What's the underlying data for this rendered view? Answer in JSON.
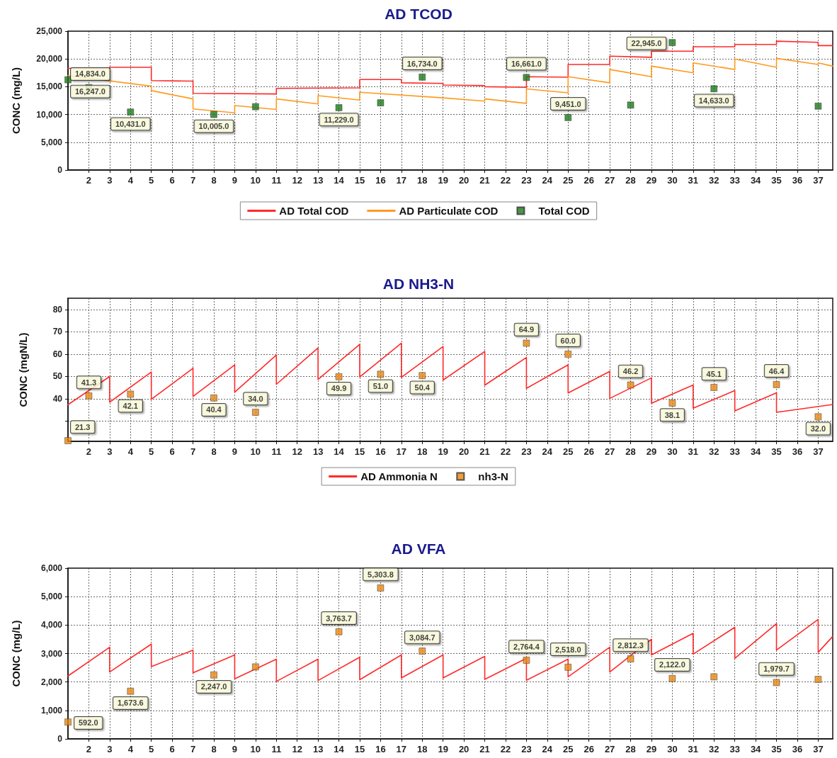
{
  "chart_data": [
    {
      "type": "line",
      "title": "AD TCOD",
      "ylabel": "CONC (mg/L)",
      "xlim": [
        1,
        37.7
      ],
      "xticks": [
        2,
        3,
        4,
        5,
        6,
        7,
        8,
        9,
        10,
        11,
        12,
        13,
        14,
        15,
        16,
        17,
        18,
        19,
        20,
        21,
        22,
        23,
        24,
        25,
        26,
        27,
        28,
        29,
        30,
        31,
        32,
        33,
        34,
        35,
        36,
        37
      ],
      "ylim": [
        0,
        25000
      ],
      "yticks": [
        0,
        {
          "value": 5000,
          "label": "5,000"
        },
        {
          "value": 10000,
          "label": "10,000"
        },
        {
          "value": 15000,
          "label": "15,000"
        },
        {
          "value": 20000,
          "label": "20,000"
        },
        {
          "value": 25000,
          "label": "25,000"
        }
      ],
      "grid": true,
      "legend": "bottom",
      "series": [
        {
          "name": "AD Total COD",
          "type": "line",
          "marker": "none",
          "color": "#ff2a2a",
          "x": [
            1,
            3,
            3,
            5,
            5,
            7,
            7,
            11,
            11,
            15,
            15,
            17,
            17,
            19,
            19,
            21,
            21,
            23,
            23,
            25,
            25,
            27,
            27,
            29,
            29,
            31,
            31,
            33,
            33,
            35,
            35,
            37,
            37,
            37.7
          ],
          "values": [
            18300,
            18300,
            18500,
            18500,
            16100,
            16000,
            13800,
            13700,
            14700,
            14800,
            16300,
            16300,
            15700,
            15600,
            15300,
            15200,
            15000,
            14900,
            16800,
            16700,
            19000,
            19000,
            20500,
            20300,
            21400,
            21400,
            22200,
            22200,
            22600,
            22600,
            23200,
            23000,
            22400,
            22400
          ]
        },
        {
          "name": "AD Particulate COD",
          "type": "line",
          "marker": "none",
          "color": "#ff9a1f",
          "x": [
            1,
            5,
            5,
            7,
            7,
            9,
            9,
            11,
            11,
            13,
            13,
            15,
            15,
            19,
            21,
            21,
            23,
            23,
            25,
            25,
            27,
            27,
            29,
            29,
            31,
            31,
            33,
            33,
            35,
            35,
            37,
            37,
            37.7
          ],
          "values": [
            17000,
            15100,
            14300,
            12800,
            11000,
            10300,
            11600,
            10900,
            12800,
            11900,
            13400,
            12600,
            14000,
            13000,
            12400,
            12800,
            12000,
            14600,
            13900,
            16800,
            15700,
            18100,
            16800,
            18700,
            17500,
            19300,
            18100,
            20000,
            18500,
            20100,
            19000,
            19300,
            18700
          ]
        },
        {
          "name": "Total COD",
          "type": "scatter",
          "marker": "square",
          "color": "#1a7a1a",
          "x": [
            1,
            2,
            4,
            8,
            10,
            14,
            16,
            18,
            23,
            25,
            28,
            30,
            32,
            37
          ],
          "values": [
            16247,
            14834,
            10431,
            10005,
            11400,
            11229,
            12100,
            16734,
            16661,
            9451,
            11700,
            22945,
            14633,
            11500
          ],
          "value_labels": [
            "16,247.0",
            "14,834.0",
            "10,431.0",
            "10,005.0",
            null,
            "11,229.0",
            null,
            "16,734.0",
            "16,661.0",
            "9,451.0",
            null,
            "22,945.0",
            "14,633.0",
            null
          ]
        }
      ]
    },
    {
      "type": "line",
      "title": "AD NH3-N",
      "ylabel": "CONC (mgN/L)",
      "xlim": [
        1,
        37.7
      ],
      "xticks": [
        2,
        3,
        4,
        5,
        6,
        7,
        8,
        9,
        10,
        11,
        12,
        13,
        14,
        15,
        16,
        17,
        18,
        19,
        20,
        21,
        22,
        23,
        24,
        25,
        26,
        27,
        28,
        29,
        30,
        31,
        32,
        33,
        34,
        35,
        36,
        37
      ],
      "ylim": [
        21,
        85
      ],
      "yticks": [
        {
          "value": 30,
          "label": null
        },
        40,
        50,
        60,
        70,
        80
      ],
      "grid": true,
      "legend": "bottom",
      "series": [
        {
          "name": "AD Ammonia N",
          "type": "line",
          "marker": "none",
          "color": "#ff2a2a",
          "x": [
            1,
            3,
            3,
            5,
            5,
            7,
            7,
            9,
            9,
            11,
            11,
            13,
            13,
            15,
            15,
            17,
            17,
            19,
            19,
            21,
            21,
            23,
            23,
            25,
            25,
            27,
            27,
            29,
            29,
            31,
            31,
            33,
            33,
            35,
            35,
            37.7
          ],
          "values": [
            37.4,
            50,
            38.5,
            52,
            39.8,
            53.7,
            41.1,
            55.2,
            43,
            59.6,
            46.5,
            62.8,
            48.7,
            64.4,
            49.8,
            64.9,
            49.6,
            63.4,
            48.4,
            61.2,
            46.1,
            58.5,
            44.7,
            55.2,
            42.6,
            52.3,
            40.2,
            49.4,
            38,
            46.2,
            35.8,
            43.7,
            34.6,
            42.7,
            34,
            37.5
          ]
        },
        {
          "name": "nh3-N",
          "type": "scatter",
          "marker": "square",
          "color": "#e8860f",
          "x": [
            1,
            2,
            4,
            8,
            10,
            14,
            16,
            18,
            23,
            25,
            28,
            30,
            32,
            35,
            37
          ],
          "values": [
            21.3,
            41.3,
            42.1,
            40.4,
            34.0,
            49.9,
            51.0,
            50.4,
            64.9,
            60.0,
            46.2,
            38.1,
            45.1,
            46.4,
            32.0
          ],
          "value_labels": [
            "21.3",
            "41.3",
            "42.1",
            "40.4",
            "34.0",
            "49.9",
            "51.0",
            "50.4",
            "64.9",
            "60.0",
            "46.2",
            "38.1",
            "45.1",
            "46.4",
            "32.0"
          ]
        }
      ]
    },
    {
      "type": "line",
      "title": "AD VFA",
      "ylabel": "CONC (mg/L)",
      "xlim": [
        1,
        37.7
      ],
      "xticks": [
        2,
        3,
        4,
        5,
        6,
        7,
        8,
        9,
        10,
        11,
        12,
        13,
        14,
        15,
        16,
        17,
        18,
        19,
        20,
        21,
        22,
        23,
        24,
        25,
        26,
        27,
        28,
        29,
        30,
        31,
        32,
        33,
        34,
        35,
        36,
        37
      ],
      "ylim": [
        0,
        6000
      ],
      "yticks": [
        0,
        {
          "value": 1000,
          "label": "1,000"
        },
        {
          "value": 2000,
          "label": "2,000"
        },
        {
          "value": 3000,
          "label": "3,000"
        },
        {
          "value": 4000,
          "label": "4,000"
        },
        {
          "value": 5000,
          "label": "5,000"
        },
        {
          "value": 6000,
          "label": "6,000"
        }
      ],
      "grid": true,
      "series": [
        {
          "type": "line",
          "marker": "none",
          "color": "#ff2a2a",
          "x": [
            1,
            3,
            3,
            5,
            5,
            7,
            7,
            9,
            9,
            11,
            11,
            13,
            13,
            15,
            15,
            17,
            17,
            19,
            19,
            21,
            21,
            23,
            23,
            25,
            25,
            27,
            27,
            29,
            29,
            31,
            31,
            33,
            33,
            35,
            35,
            37,
            37,
            37.7
          ],
          "values": [
            2210,
            3220,
            2350,
            3330,
            2540,
            3120,
            2320,
            2950,
            2110,
            2800,
            2020,
            2800,
            2050,
            2870,
            2080,
            2950,
            2140,
            2950,
            2140,
            2900,
            2090,
            2830,
            2060,
            2800,
            2180,
            3220,
            2350,
            3500,
            2950,
            3710,
            2980,
            3920,
            2830,
            4050,
            3120,
            4200,
            3040,
            3600
          ]
        },
        {
          "type": "scatter",
          "marker": "square",
          "color": "#e8860f",
          "x": [
            1,
            4,
            8,
            10,
            14,
            16,
            18,
            23,
            25,
            28,
            30,
            32,
            35,
            37
          ],
          "values": [
            592,
            1673.6,
            2247,
            2530,
            3763.7,
            5303.8,
            3084.7,
            2764.4,
            2518,
            2812.3,
            2122,
            2180,
            1979.7,
            2090
          ],
          "value_labels": [
            "592.0",
            "1,673.6",
            "2,247.0",
            null,
            "3,763.7",
            "5,303.8",
            "3,084.7",
            "2,764.4",
            "2,518.0",
            "2,812.3",
            "2,122.0",
            null,
            "1,979.7",
            null
          ]
        }
      ]
    }
  ]
}
